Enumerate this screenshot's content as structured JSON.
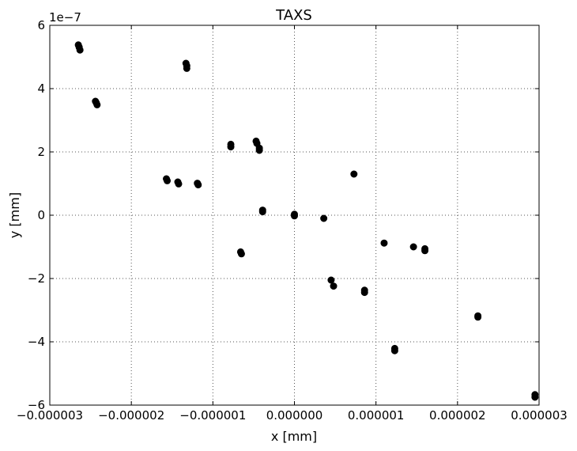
{
  "chart_data": {
    "type": "scatter",
    "title": "TAXS",
    "xlabel": "x [mm]",
    "ylabel": "y [mm]",
    "y_offset_label": "1e−7",
    "xlim": [
      -3e-06,
      3e-06
    ],
    "ylim": [
      -6,
      6
    ],
    "grid": true,
    "marker_color": "#000000",
    "x_ticks": [
      {
        "value": -3e-06,
        "label": "−0.000003"
      },
      {
        "value": -2e-06,
        "label": "−0.000002"
      },
      {
        "value": -1e-06,
        "label": "−0.000001"
      },
      {
        "value": 0,
        "label": "0.000000"
      },
      {
        "value": 1e-06,
        "label": "0.000001"
      },
      {
        "value": 2e-06,
        "label": "0.000002"
      },
      {
        "value": 3e-06,
        "label": "0.000003"
      }
    ],
    "y_ticks": [
      {
        "value": -6,
        "label": "−6"
      },
      {
        "value": -4,
        "label": "−4"
      },
      {
        "value": -2,
        "label": "−2"
      },
      {
        "value": 0,
        "label": "0"
      },
      {
        "value": 2,
        "label": "2"
      },
      {
        "value": 4,
        "label": "4"
      },
      {
        "value": 6,
        "label": "6"
      }
    ],
    "points": [
      {
        "x": -2.65e-06,
        "y": 5.38
      },
      {
        "x": -2.64e-06,
        "y": 5.31
      },
      {
        "x": -2.63e-06,
        "y": 5.22
      },
      {
        "x": -2.44e-06,
        "y": 3.6
      },
      {
        "x": -2.43e-06,
        "y": 3.55
      },
      {
        "x": -2.42e-06,
        "y": 3.49
      },
      {
        "x": -1.33e-06,
        "y": 4.8
      },
      {
        "x": -1.32e-06,
        "y": 4.72
      },
      {
        "x": -1.32e-06,
        "y": 4.64
      },
      {
        "x": -1.57e-06,
        "y": 1.15
      },
      {
        "x": -1.56e-06,
        "y": 1.09
      },
      {
        "x": -1.43e-06,
        "y": 1.05
      },
      {
        "x": -1.42e-06,
        "y": 0.99
      },
      {
        "x": -1.19e-06,
        "y": 1.01
      },
      {
        "x": -1.18e-06,
        "y": 0.96
      },
      {
        "x": -7.8e-07,
        "y": 2.24
      },
      {
        "x": -7.8e-07,
        "y": 2.16
      },
      {
        "x": -4.7e-07,
        "y": 2.34
      },
      {
        "x": -4.6e-07,
        "y": 2.27
      },
      {
        "x": -4.3e-07,
        "y": 2.12
      },
      {
        "x": -4.3e-07,
        "y": 2.05
      },
      {
        "x": -6.6e-07,
        "y": -1.16
      },
      {
        "x": -6.5e-07,
        "y": -1.22
      },
      {
        "x": -3.9e-07,
        "y": 0.16
      },
      {
        "x": -3.9e-07,
        "y": 0.11
      },
      {
        "x": 0.0,
        "y": 0.03
      },
      {
        "x": 0.0,
        "y": -0.02
      },
      {
        "x": 3.6e-07,
        "y": -0.1
      },
      {
        "x": 7.3e-07,
        "y": 1.3
      },
      {
        "x": 4.5e-07,
        "y": -2.05
      },
      {
        "x": 4.8e-07,
        "y": -2.24
      },
      {
        "x": 8.6e-07,
        "y": -2.37
      },
      {
        "x": 8.6e-07,
        "y": -2.44
      },
      {
        "x": 1.1e-06,
        "y": -0.88
      },
      {
        "x": 1.46e-06,
        "y": -1.0
      },
      {
        "x": 1.6e-06,
        "y": -1.06
      },
      {
        "x": 1.6e-06,
        "y": -1.12
      },
      {
        "x": 1.23e-06,
        "y": -4.21
      },
      {
        "x": 1.23e-06,
        "y": -4.28
      },
      {
        "x": 2.25e-06,
        "y": -3.18
      },
      {
        "x": 2.25e-06,
        "y": -3.22
      },
      {
        "x": 2.95e-06,
        "y": -5.67
      },
      {
        "x": 2.95e-06,
        "y": -5.75
      }
    ]
  }
}
